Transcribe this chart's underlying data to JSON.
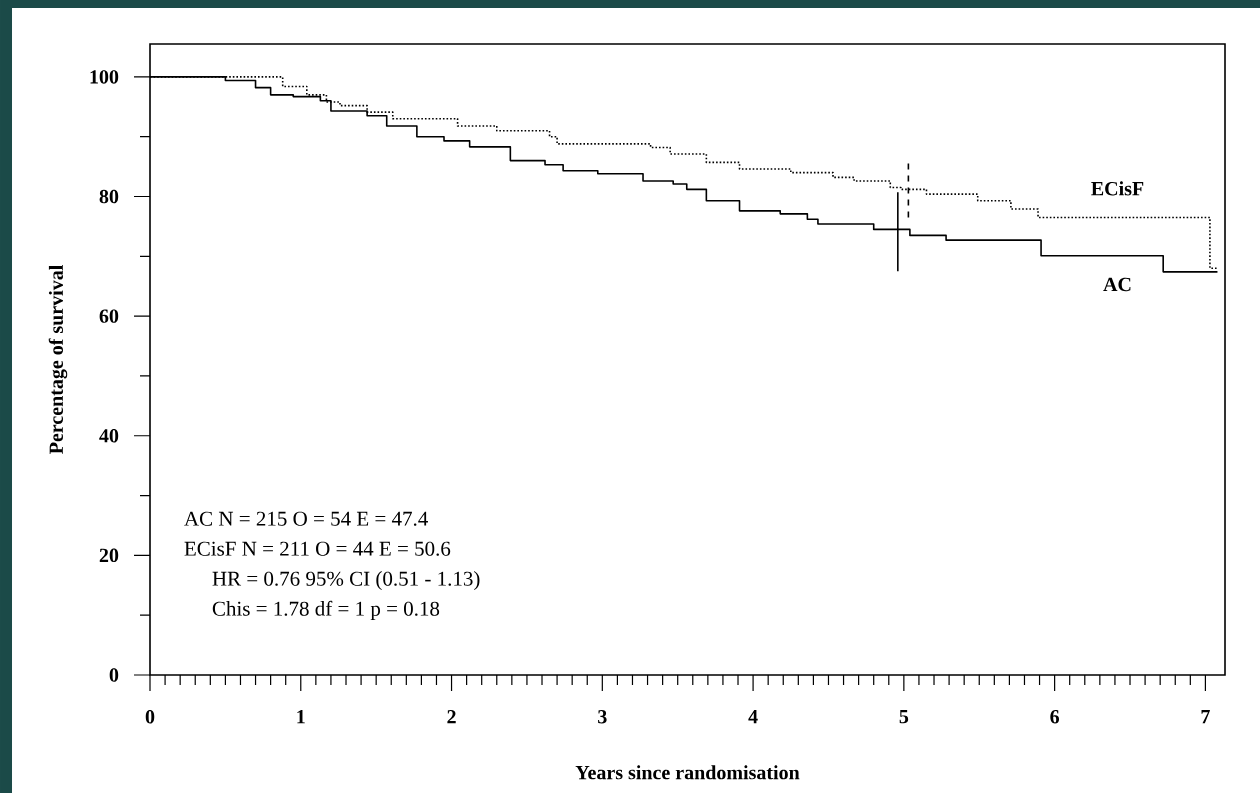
{
  "chart_data": {
    "type": "step",
    "xlabel": "Years since randomisation",
    "ylabel": "Percentage of survival",
    "xlim": [
      0,
      7.13
    ],
    "ylim": [
      0,
      105.5
    ],
    "xticks": [
      0,
      1,
      2,
      3,
      4,
      5,
      6,
      7
    ],
    "yticks": [
      0,
      20,
      40,
      60,
      80,
      100
    ],
    "grid": false,
    "marker": "none",
    "series": [
      {
        "name": "ECisF",
        "color": "#000000",
        "line_style": "dotted",
        "x": [
          0,
          0.88,
          1.04,
          1.17,
          1.26,
          1.44,
          1.61,
          2.04,
          2.3,
          2.65,
          2.7,
          3.32,
          3.45,
          3.69,
          3.91,
          4.25,
          4.53,
          4.67,
          4.91,
          4.98,
          5.15,
          5.49,
          5.71,
          5.89,
          7.03,
          7.08
        ],
        "values": [
          100,
          98.4,
          97,
          95.8,
          95.2,
          94.1,
          93,
          91.8,
          91,
          90,
          88.8,
          88.2,
          87.1,
          85.7,
          84.6,
          84,
          83.2,
          82.6,
          81.5,
          81.2,
          80.4,
          79.3,
          77.9,
          76.5,
          68,
          68
        ]
      },
      {
        "name": "AC",
        "color": "#000000",
        "line_style": "solid",
        "x": [
          0,
          0.5,
          0.7,
          0.8,
          0.95,
          1.13,
          1.2,
          1.44,
          1.57,
          1.77,
          1.95,
          2.12,
          2.39,
          2.62,
          2.74,
          2.97,
          3.27,
          3.47,
          3.56,
          3.69,
          3.91,
          4.18,
          4.36,
          4.43,
          4.8,
          5.04,
          5.28,
          5.91,
          6.72,
          7.08
        ],
        "values": [
          100,
          99.4,
          98.2,
          97,
          96.7,
          96,
          94.3,
          93.5,
          91.8,
          90,
          89.3,
          88.3,
          86,
          85.3,
          84.3,
          83.8,
          82.6,
          82.1,
          81.2,
          79.3,
          77.6,
          77.1,
          76.2,
          75.4,
          74.5,
          73.5,
          72.7,
          70.1,
          67.4,
          67.4
        ]
      },
      {
        "type": "line",
        "color": "#000000",
        "line_style": "solid",
        "x": [
          4.96,
          4.96
        ],
        "values": [
          67.5,
          80.7
        ]
      },
      {
        "type": "line",
        "color": "#000000",
        "line_style": "dashed",
        "x": [
          5.03,
          5.03
        ],
        "values": [
          76.5,
          85.9
        ]
      }
    ],
    "annotations": [
      "AC  N = 215  O = 54 E = 47.4",
      "ECisF  N = 211  O = 44 E = 50.6",
      "HR = 0.76 95% CI (0.51 - 1.13)",
      "Chis = 1.78  df = 1  p = 0.18"
    ]
  }
}
